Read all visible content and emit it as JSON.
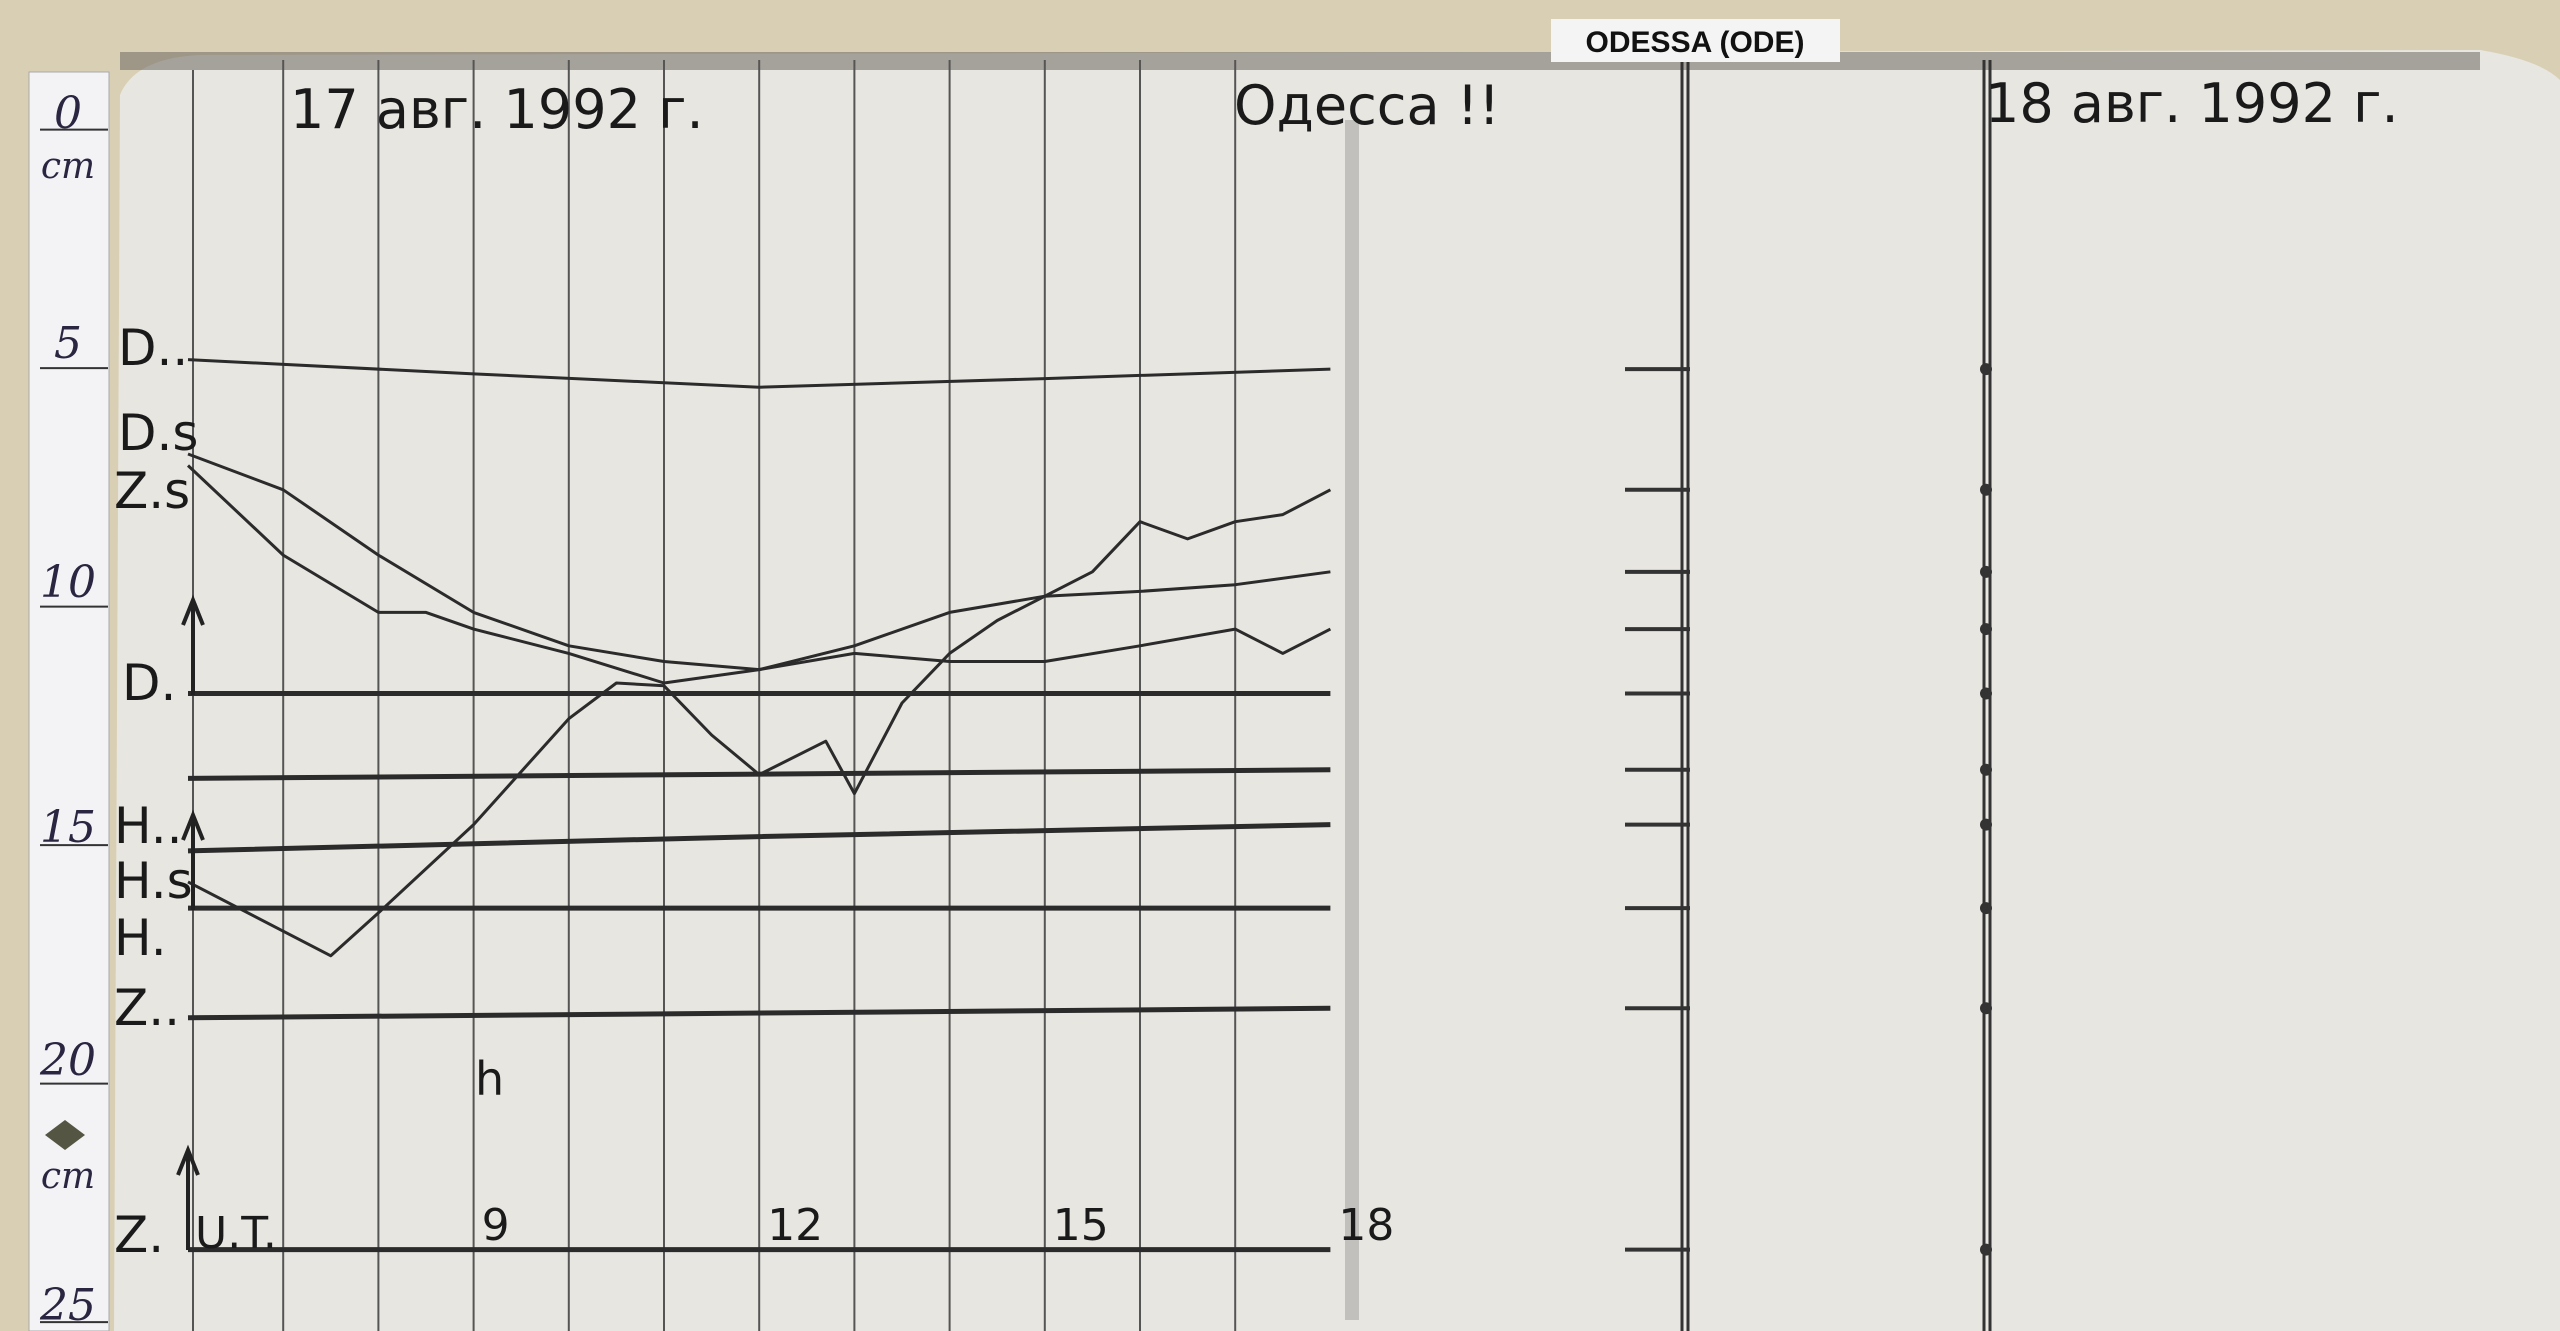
{
  "station_label": "ODESSA (ODE)",
  "left_sheet": {
    "date": "17 авг. 1992 г.",
    "station": "Одесса !!"
  },
  "right_sheet": {
    "date": "18 авг. 1992 г."
  },
  "scale_strip": {
    "ticks": [
      "0",
      "5",
      "10",
      "15",
      "20",
      "25"
    ],
    "unit_top": "cm",
    "unit_bottom": "cm"
  },
  "channel_labels": {
    "D_dot_dot": "D..",
    "D_s": "D.s",
    "Z_s": "Z.s",
    "D_zero": "D.",
    "H_dot_dot": "H..",
    "H_s": "H.s",
    "H_zero": "H.",
    "Z_dot_dot": "Z..",
    "Z_zero": "Z."
  },
  "axis": {
    "unit_label": "h",
    "time_label": "U.T.",
    "hour_ticks": [
      "9",
      "12",
      "15",
      "18"
    ]
  },
  "colors": {
    "paper": "#e8e6e0",
    "ink": "#2b2b2b",
    "board": "#d9cfb4"
  },
  "chart_data": {
    "type": "line",
    "title": "",
    "xlabel": "U.T.",
    "ylabel": "cm",
    "xlim": [
      6,
      18.4
    ],
    "ylim": [
      0,
      25
    ],
    "x_ticks": [
      9,
      12,
      15,
      18
    ],
    "grid": true,
    "series": [
      {
        "name": "D..",
        "points": [
          [
            6,
            4.8
          ],
          [
            9,
            5.1
          ],
          [
            12,
            5.38
          ],
          [
            15,
            5.2
          ],
          [
            18,
            5.0
          ]
        ]
      },
      {
        "name": "D.s",
        "points": [
          [
            6,
            6.78
          ],
          [
            7,
            7.53
          ],
          [
            8,
            8.9
          ],
          [
            9,
            10.1
          ],
          [
            10,
            10.8
          ],
          [
            11,
            11.13
          ],
          [
            12,
            11.3
          ],
          [
            13,
            10.8
          ],
          [
            14,
            10.1
          ],
          [
            15,
            9.76
          ],
          [
            16,
            9.66
          ],
          [
            17,
            9.52
          ],
          [
            18,
            9.25
          ]
        ]
      },
      {
        "name": "Z.s",
        "points": [
          [
            6,
            7.02
          ],
          [
            7,
            8.9
          ],
          [
            8,
            10.1
          ],
          [
            8.5,
            10.1
          ],
          [
            9,
            10.45
          ],
          [
            10,
            10.96
          ],
          [
            11,
            11.58
          ],
          [
            12,
            11.3
          ],
          [
            13,
            10.96
          ],
          [
            14,
            11.13
          ],
          [
            15,
            11.13
          ],
          [
            16,
            10.8
          ],
          [
            17,
            10.45
          ],
          [
            17.5,
            10.96
          ],
          [
            18,
            10.45
          ]
        ]
      },
      {
        "name": "H.s",
        "points": [
          [
            6,
            15.75
          ],
          [
            7.5,
            17.3
          ],
          [
            8,
            16.4
          ],
          [
            9,
            14.55
          ],
          [
            10,
            12.33
          ],
          [
            10.5,
            11.58
          ],
          [
            11,
            11.64
          ],
          [
            11.5,
            12.67
          ],
          [
            12,
            13.5
          ],
          [
            12.7,
            12.8
          ],
          [
            13,
            13.9
          ],
          [
            13.5,
            12.0
          ],
          [
            14,
            10.96
          ],
          [
            14.5,
            10.27
          ],
          [
            15.5,
            9.25
          ],
          [
            16,
            8.2
          ],
          [
            16.5,
            8.56
          ],
          [
            17,
            8.2
          ],
          [
            17.5,
            8.05
          ],
          [
            18,
            7.53
          ]
        ]
      },
      {
        "name": "D.",
        "points": [
          [
            6,
            11.8
          ],
          [
            18,
            11.8
          ]
        ]
      },
      {
        "points": [
          [
            6,
            13.58
          ],
          [
            18,
            13.4
          ]
        ]
      },
      {
        "name": "H..",
        "points": [
          [
            6,
            15.1
          ],
          [
            12,
            14.8
          ],
          [
            18,
            14.55
          ]
        ]
      },
      {
        "name": "H.",
        "points": [
          [
            6,
            16.3
          ],
          [
            18,
            16.3
          ]
        ]
      },
      {
        "name": "Z..",
        "points": [
          [
            6,
            18.6
          ],
          [
            18,
            18.4
          ]
        ]
      },
      {
        "name": "Z.",
        "points": [
          [
            6,
            23.46
          ],
          [
            18,
            23.46
          ]
        ]
      }
    ]
  }
}
